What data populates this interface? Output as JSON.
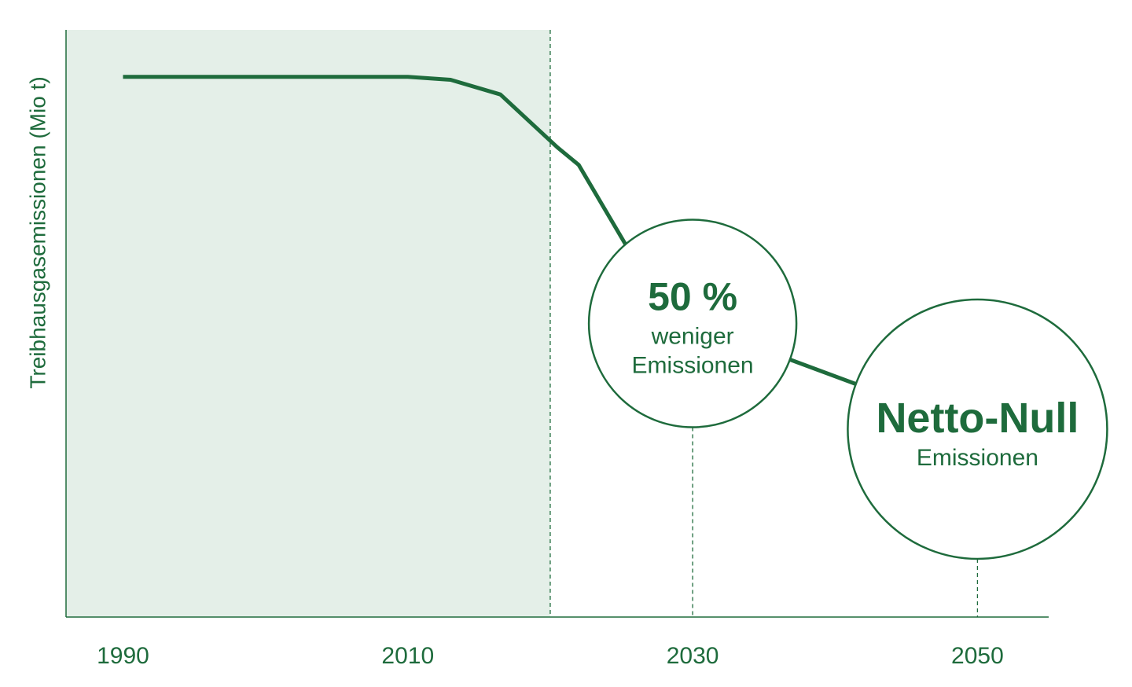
{
  "chart_data": {
    "type": "line",
    "y_label": "Treibhausgasemissionen (Mio t)",
    "xlim": [
      1986,
      2055
    ],
    "xticks": [
      1990,
      2010,
      2030,
      2050
    ],
    "ylim": [
      0,
      100
    ],
    "highlight_until": 2020,
    "series": [
      {
        "color": "#1e6b3c",
        "x": [
          1990,
          2010,
          2013,
          2016.5,
          2020.5,
          2022,
          2025.4,
          2030,
          2050
        ],
        "values": [
          92,
          92,
          91.5,
          89,
          80,
          77,
          63,
          50,
          32
        ]
      }
    ],
    "annotations": [
      {
        "x": 2030,
        "y": 50,
        "title": "50 %",
        "text": [
          "weniger",
          "Emissionen"
        ]
      },
      {
        "x": 2050,
        "y": 32,
        "title": "Netto-Null",
        "text": [
          "Emissionen"
        ]
      }
    ]
  }
}
